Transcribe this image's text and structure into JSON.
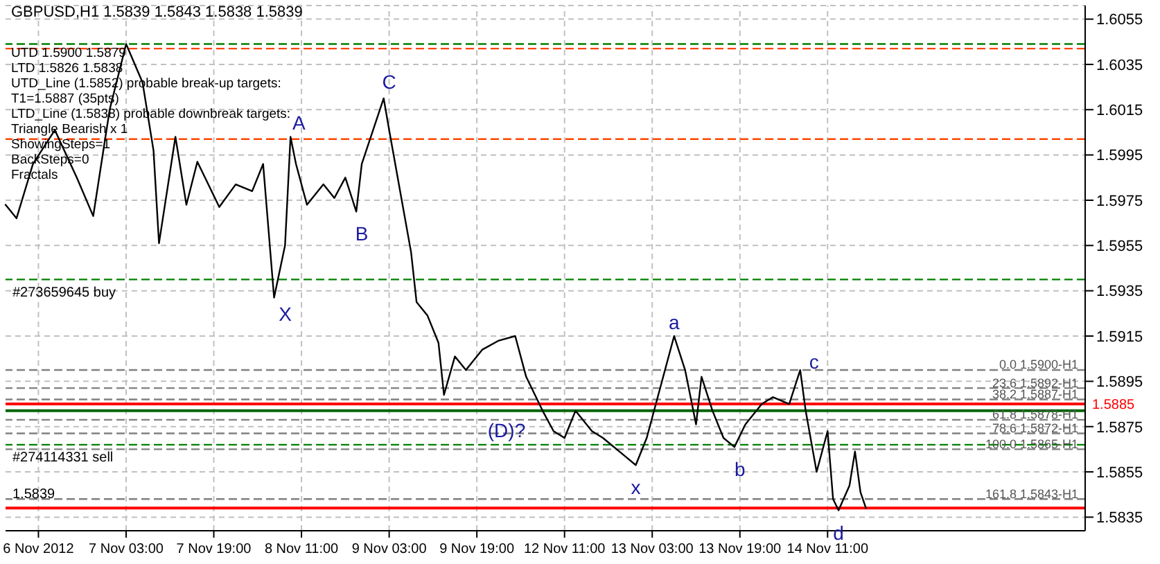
{
  "chart_data": {
    "type": "line",
    "title": "GBPUSD,H1  1.5839 1.5843 1.5838 1.5839",
    "categories": [
      null,
      null,
      null,
      null,
      null,
      null,
      "6 Nov 2012",
      null,
      null,
      null,
      null,
      null,
      null,
      null,
      null,
      null,
      null,
      null,
      null,
      null,
      null,
      null,
      "7 Nov 03:00",
      null,
      null,
      null,
      null,
      null,
      null,
      null,
      null,
      null,
      null,
      null,
      null,
      null,
      null,
      null,
      "7 Nov 19:00",
      null,
      null,
      null,
      null,
      null,
      null,
      null,
      null,
      null,
      null,
      null,
      null,
      null,
      null,
      null,
      "8 Nov 11:00",
      null,
      null,
      null,
      null,
      null,
      null,
      null,
      null,
      null,
      null,
      null,
      null,
      null,
      null,
      null,
      "9 Nov 03:00",
      null,
      null,
      null,
      null,
      null,
      null,
      null,
      null,
      null,
      null,
      null,
      null,
      null,
      null,
      null,
      "9 Nov 19:00",
      null,
      null,
      null,
      null,
      null,
      null,
      null,
      null,
      null,
      null,
      null,
      null,
      null,
      null,
      null,
      "12 Nov 11:00",
      null,
      null,
      null,
      null,
      null,
      null,
      null,
      null,
      null,
      null,
      null,
      null,
      null,
      null,
      null,
      "13 Nov 03:00",
      null,
      null,
      null,
      null,
      null,
      null,
      null,
      null,
      null,
      null,
      null,
      null,
      null,
      null,
      null,
      "13 Nov 19:00",
      null,
      null,
      null,
      null,
      null,
      null,
      null,
      null,
      null,
      null,
      null,
      null,
      null,
      null,
      null,
      "14 Nov 11:00",
      null,
      null,
      null,
      null,
      null,
      null,
      null,
      null,
      null,
      null,
      null,
      null,
      null,
      null,
      null,
      null,
      null,
      null,
      null,
      null,
      null,
      null,
      null,
      null,
      null,
      null,
      null,
      null,
      null,
      null,
      null,
      null,
      null,
      null,
      null,
      null,
      null,
      null,
      null,
      null,
      null,
      null,
      null,
      null,
      null,
      null,
      null
    ],
    "series": [
      {
        "color": "#000000",
        "values": [
          1.5973,
          null,
          1.5967,
          null,
          null,
          1.5991,
          null,
          null,
          null,
          1.6006,
          null,
          null,
          null,
          1.5985,
          null,
          null,
          1.5968,
          null,
          null,
          1.6015,
          null,
          null,
          1.6044,
          null,
          null,
          1.6027,
          null,
          1.5997,
          1.5956,
          null,
          null,
          1.6003,
          null,
          1.5973,
          null,
          1.5992,
          null,
          null,
          null,
          1.5972,
          null,
          null,
          1.5982,
          null,
          null,
          1.5979,
          null,
          1.5991,
          null,
          1.5932,
          null,
          1.5955,
          1.6003,
          1.5991,
          null,
          1.5973,
          null,
          null,
          1.5982,
          null,
          1.5976,
          null,
          1.5985,
          null,
          1.597,
          1.5991,
          null,
          null,
          null,
          1.602,
          1.6006,
          null,
          1.5979,
          null,
          1.5952,
          1.593,
          null,
          1.5924,
          null,
          1.5912,
          1.5889,
          null,
          1.5906,
          null,
          1.59,
          null,
          null,
          1.5909,
          null,
          null,
          1.5913,
          null,
          null,
          1.5915,
          null,
          1.5897,
          null,
          null,
          1.5882,
          null,
          1.5873,
          null,
          1.587,
          null,
          1.5882,
          null,
          null,
          1.5873,
          null,
          1.587,
          null,
          null,
          null,
          1.5862,
          null,
          1.5858,
          null,
          1.587,
          null,
          1.5888,
          null,
          null,
          1.5915,
          null,
          1.59,
          null,
          1.5876,
          1.5897,
          null,
          1.5882,
          null,
          1.587,
          null,
          1.5866,
          null,
          1.5876,
          null,
          null,
          1.5885,
          null,
          1.5888,
          null,
          null,
          1.5885,
          null,
          1.59,
          1.5882,
          null,
          1.5855,
          null,
          1.5873,
          1.5843,
          1.5838,
          null,
          1.5849,
          1.5864,
          1.5846,
          1.5839,
          null,
          null,
          null,
          null,
          null,
          null,
          null,
          null,
          null,
          null,
          null,
          null,
          null,
          null,
          null,
          null,
          null,
          null,
          null,
          null,
          null,
          null,
          null,
          null,
          null,
          null,
          null,
          null,
          null,
          null,
          null,
          null,
          null,
          null,
          null,
          null,
          null,
          null,
          null,
          null
        ]
      }
    ],
    "ylim": [
      1.5829,
      1.6061
    ],
    "yticks": [
      1.6055,
      1.6035,
      1.6015,
      1.5995,
      1.5975,
      1.5955,
      1.5935,
      1.5915,
      1.5895,
      1.5875,
      1.5855,
      1.5835
    ],
    "grid": true,
    "marker": "none",
    "line_style": "solid",
    "legend": false,
    "ref_lines": [
      {
        "axis": "y",
        "value": 1.6044,
        "label": null,
        "color": "#008000",
        "line_style": "dashed"
      },
      {
        "axis": "y",
        "value": 1.6042,
        "label": null,
        "color": "#ff4500",
        "line_style": "dashed"
      },
      {
        "axis": "y",
        "value": 1.6002,
        "label": null,
        "color": "#ff4500",
        "line_style": "dashed"
      },
      {
        "axis": "y",
        "value": 1.594,
        "label": "#273659645 buy",
        "color": "#008000",
        "line_style": "dashed"
      },
      {
        "axis": "y",
        "value": 1.5867,
        "label": "#274114331 sell",
        "color": "#008000",
        "line_style": "dashed"
      },
      {
        "axis": "y",
        "value": 1.59,
        "label": "0.0 1.5900-H1",
        "color": "#808080",
        "line_style": "dashed"
      },
      {
        "axis": "y",
        "value": 1.5892,
        "label": "23.6 1.5892-H1",
        "color": "#808080",
        "line_style": "dashed"
      },
      {
        "axis": "y",
        "value": 1.5887,
        "label": "38.2 1.5887-H1",
        "color": "#808080",
        "line_style": "dashed"
      },
      {
        "axis": "y",
        "value": 1.5878,
        "label": "61.8 1.5878-H1",
        "color": "#808080",
        "line_style": "dashed"
      },
      {
        "axis": "y",
        "value": 1.5872,
        "label": "78.6 1.5872-H1",
        "color": "#808080",
        "line_style": "dashed"
      },
      {
        "axis": "y",
        "value": 1.5865,
        "label": "100.0 1.5865-H1",
        "color": "#808080",
        "line_style": "dashed"
      },
      {
        "axis": "y",
        "value": 1.5843,
        "label": "161.8 1.5843-H1",
        "color": "#808080",
        "line_style": "dashed"
      },
      {
        "axis": "y",
        "value": 1.5882,
        "label": null,
        "color": "#006400",
        "line_style": "solid"
      },
      {
        "axis": "y",
        "value": 1.5885,
        "label": "1.5885",
        "color": "#ff0000",
        "line_style": "solid"
      },
      {
        "axis": "y",
        "value": 1.5839,
        "label": "1.5839",
        "color": "#ff0000",
        "line_style": "solid"
      }
    ],
    "annotations": [
      "UTD 1.5900  1.5879",
      "LTD  1.5826  1.5838",
      "UTD_Line (1.5852) probable break-up targets:",
      "T1=1.5887 (35pts)",
      "LTD_Line (1.5838) probable downbreak targets:",
      "Triangle Bearish x 1",
      "ShowingSteps=1",
      "BackSteps=0",
      "Fractals",
      "A",
      "B",
      "C",
      "X",
      "(D)?",
      "a",
      "b",
      "c",
      "d",
      "x"
    ]
  }
}
